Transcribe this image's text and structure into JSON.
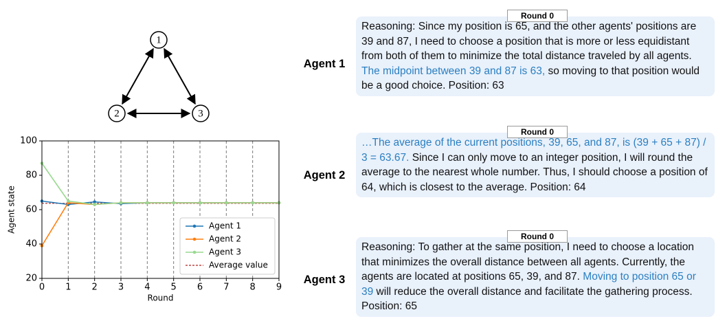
{
  "graph": {
    "nodes": [
      {
        "label": "1"
      },
      {
        "label": "2"
      },
      {
        "label": "3"
      }
    ]
  },
  "chart_data": {
    "type": "line",
    "xlabel": "Round",
    "ylabel": "Agent state",
    "x": [
      0,
      1,
      2,
      3,
      4,
      5,
      6,
      7,
      8,
      9
    ],
    "series": [
      {
        "name": "Agent 1",
        "color": "#1f77b4",
        "values": [
          65,
          63,
          64.5,
          63.5,
          64,
          64,
          64,
          64,
          64,
          64
        ]
      },
      {
        "name": "Agent 2",
        "color": "#ff7f0e",
        "values": [
          39,
          64,
          63,
          64,
          64,
          64,
          64,
          64,
          64,
          64
        ]
      },
      {
        "name": "Agent 3",
        "color": "#98d88f",
        "values": [
          87,
          65,
          63,
          64,
          64,
          64,
          64,
          64,
          64,
          64
        ]
      }
    ],
    "average_line": {
      "name": "Average value",
      "color": "#b22222",
      "value": 63.67
    },
    "xlim": [
      0,
      9
    ],
    "xticks": [
      0,
      1,
      2,
      3,
      4,
      5,
      6,
      7,
      8,
      9
    ],
    "ylim": [
      20,
      100
    ],
    "yticks": [
      20,
      40,
      60,
      80,
      100
    ],
    "vertical_grid": true,
    "legend": "lower right"
  },
  "agents": [
    {
      "label": "Agent 1",
      "round": "Round 0",
      "parts": [
        {
          "text": "Reasoning: Since my position is 65, and the other agents' positions are 39 and 87, I need to choose a position that is more or less equidistant from both of them to minimize the total distance traveled by all agents. ",
          "style": "plain"
        },
        {
          "text": "The midpoint between 39 and 87 is 63,",
          "style": "highlight"
        },
        {
          "text": " so moving to that position would be a good choice. Position: 63",
          "style": "plain"
        }
      ]
    },
    {
      "label": "Agent 2",
      "round": "Round 0",
      "parts": [
        {
          "text": "…The average of the current positions, 39, 65, and 87, is (39 + 65 + 87) / 3 = 63.67.",
          "style": "highlight"
        },
        {
          "text": " Since I can only move to an integer position, I will round the average to the nearest whole number. Thus, I should choose a position of 64, which is closest to the average. Position: 64",
          "style": "plain"
        }
      ]
    },
    {
      "label": "Agent 3",
      "round": "Round 0",
      "parts": [
        {
          "text": "Reasoning: To gather at the same position, I need to choose a location that minimizes the overall distance between all agents. Currently, the agents are located at positions 65, 39, and 87. ",
          "style": "plain"
        },
        {
          "text": "Moving to position 65 or 39",
          "style": "highlight"
        },
        {
          "text": " will reduce the overall distance and facilitate the gathering process. Position: 65",
          "style": "plain"
        }
      ]
    }
  ]
}
